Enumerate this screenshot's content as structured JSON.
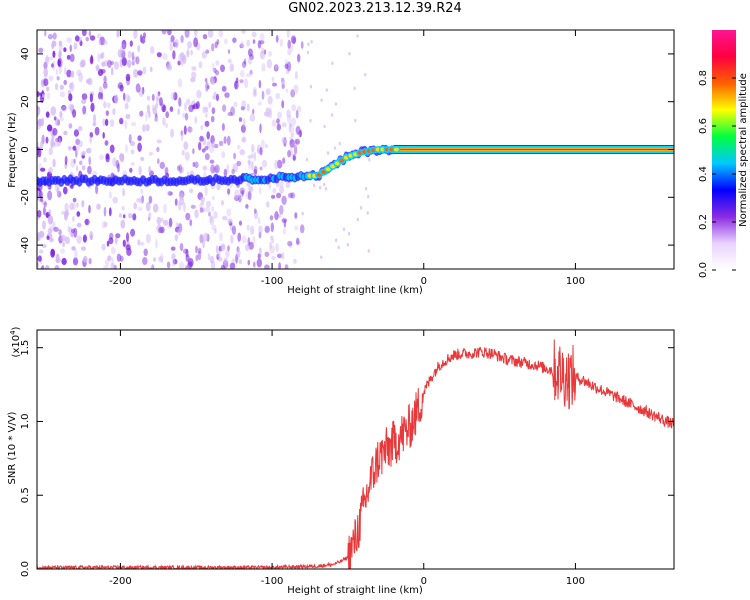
{
  "title": "GN02.2023.213.12.39.R24",
  "colors": {
    "trace": "#e8383a",
    "scatter_purple": "#7a1fe0",
    "scatter_light": "#d3b8f5",
    "colorbar_stops": [
      "#ffffff",
      "#e9d2ff",
      "#8a2be2",
      "#0000ff",
      "#00c8ff",
      "#00ff40",
      "#ffff00",
      "#ff6000",
      "#ff0040",
      "#ff1493"
    ]
  },
  "chart_data": [
    {
      "type": "heatmap",
      "xlabel": "Height of straight line (km)",
      "ylabel": "Frequency (Hz)",
      "xlim": [
        -255,
        165
      ],
      "ylim": [
        -50,
        50
      ],
      "xticks": [
        -200,
        -100,
        0,
        100
      ],
      "yticks": [
        -40,
        -20,
        0,
        20,
        40
      ],
      "colorbar": {
        "label": "Normalized spectral amplitude",
        "range": [
          0,
          1
        ],
        "ticks": [
          "0.0",
          "0.2",
          "0.4",
          "0.6",
          "0.8"
        ]
      },
      "ridge": {
        "description_free_values": true,
        "x": [
          -255,
          -150,
          -100,
          -80,
          -70,
          -60,
          -50,
          -40,
          -30,
          -20,
          0,
          165
        ],
        "y": [
          -13,
          -13,
          -12,
          -11,
          -11,
          -7,
          -3,
          -1,
          0,
          0,
          0,
          0
        ]
      },
      "scatter_region_x": [
        -255,
        -80
      ]
    },
    {
      "type": "line",
      "xlabel": "Height of straight line (km)",
      "ylabel": "SNR (10 * V/V)",
      "ylabel_scale": "(x10",
      "ylabel_scale_exp": "4",
      "ylabel_scale_close": ")",
      "xlim": [
        -255,
        165
      ],
      "ylim": [
        0,
        1.62
      ],
      "xticks": [
        -200,
        -100,
        0,
        100
      ],
      "yticks": [
        "0.0",
        "0.5",
        "1.0",
        "1.5"
      ],
      "ytick_values": [
        0,
        0.5,
        1.0,
        1.5
      ],
      "series": [
        {
          "x": [
            -255,
            -200,
            -150,
            -100,
            -70,
            -60,
            -55,
            -50,
            -45,
            -40,
            -35,
            -30,
            -25,
            -20,
            -15,
            -10,
            -5,
            0,
            5,
            10,
            15,
            20,
            25,
            30,
            35,
            40,
            45,
            50,
            55,
            60,
            65,
            70,
            75,
            80,
            85,
            90,
            95,
            100,
            105,
            110,
            120,
            130,
            140,
            150,
            160,
            165
          ],
          "y": [
            0.01,
            0.01,
            0.01,
            0.01,
            0.02,
            0.03,
            0.05,
            0.08,
            0.2,
            0.4,
            0.6,
            0.75,
            0.8,
            0.85,
            0.9,
            0.95,
            1.05,
            1.2,
            1.3,
            1.38,
            1.42,
            1.45,
            1.46,
            1.46,
            1.47,
            1.47,
            1.46,
            1.44,
            1.42,
            1.41,
            1.4,
            1.39,
            1.38,
            1.36,
            1.35,
            1.33,
            1.3,
            1.3,
            1.28,
            1.25,
            1.2,
            1.15,
            1.1,
            1.05,
            1.0,
            0.98
          ]
        }
      ]
    }
  ]
}
